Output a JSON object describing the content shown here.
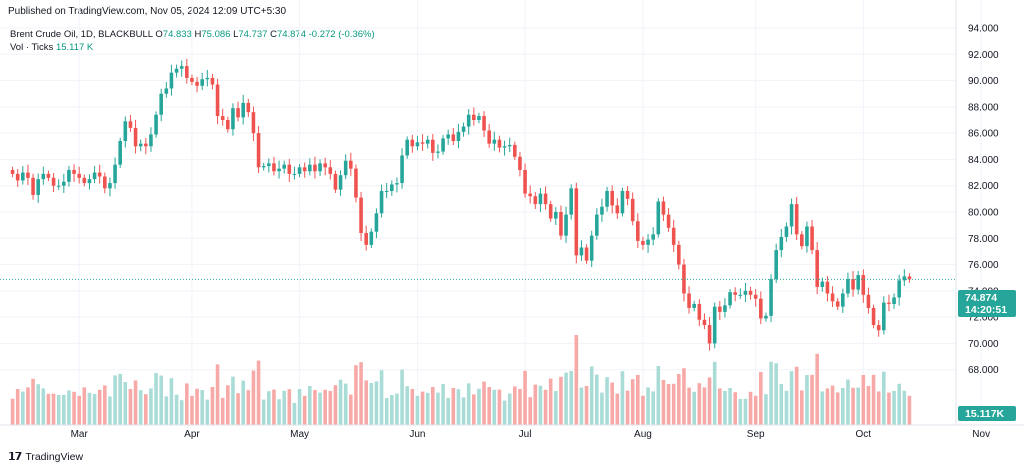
{
  "header": {
    "published": "Published on TradingView.com, Nov 05, 2024 12:09 UTC+5:30"
  },
  "legend": {
    "symbol": "Brent Crude Oil, 1D, BLACKBULL",
    "o_label": "O",
    "o_value": "74.833",
    "h_label": "H",
    "h_value": "75.086",
    "l_label": "L",
    "l_value": "74.737",
    "c_label": "C",
    "c_value": "74.874",
    "change": "-0.272 (-0.36%)",
    "vol_label": "Vol · Ticks",
    "vol_value": "15.117 K"
  },
  "price_tag": {
    "price": "74.874",
    "countdown": "14:20:51"
  },
  "volume_tag": {
    "value": "15.117K"
  },
  "footer": {
    "brand": "TradingView"
  },
  "colors": {
    "up": "#26a69a",
    "down": "#ef5350",
    "up_vol": "#a9dcd6",
    "down_vol": "#f7a9a7",
    "price_line": "#26a69a",
    "axis_text": "#131722",
    "grid": "#f0f3fa"
  },
  "chart_data": {
    "type": "candlestick",
    "symbol": "Brent Crude Oil",
    "interval": "1D",
    "y_axis": {
      "min": 66,
      "max": 94,
      "ticks": [
        "94.000",
        "92.000",
        "90.000",
        "88.000",
        "86.000",
        "84.000",
        "82.000",
        "80.000",
        "78.000",
        "76.000",
        "74.000",
        "72.000",
        "70.000",
        "68.000"
      ]
    },
    "x_axis": {
      "ticks": [
        "Mar",
        "Apr",
        "May",
        "Jun",
        "Jul",
        "Aug",
        "Sep",
        "Oct",
        "Nov"
      ]
    },
    "last_price": 74.874,
    "closes": [
      82.9,
      82.4,
      83.0,
      82.6,
      81.3,
      82.5,
      82.9,
      82.6,
      82.0,
      82.0,
      82.3,
      83.2,
      82.9,
      82.6,
      82.2,
      82.5,
      83.0,
      82.7,
      81.8,
      82.2,
      83.6,
      85.4,
      86.9,
      86.4,
      85.0,
      85.2,
      85.0,
      85.9,
      87.4,
      89.0,
      89.4,
      90.6,
      90.9,
      91.1,
      90.2,
      89.9,
      89.6,
      90.1,
      90.2,
      89.7,
      87.3,
      87.0,
      86.3,
      87.9,
      87.2,
      88.3,
      87.6,
      86.0,
      83.4,
      83.5,
      83.7,
      83.1,
      83.3,
      83.6,
      82.9,
      82.9,
      83.4,
      83.1,
      83.6,
      83.1,
      83.7,
      83.4,
      82.9,
      81.7,
      82.8,
      83.9,
      83.3,
      81.1,
      78.4,
      77.5,
      78.5,
      79.9,
      81.6,
      81.6,
      82.1,
      82.2,
      84.3,
      85.5,
      85.0,
      85.3,
      85.2,
      85.5,
      84.5,
      84.6,
      85.6,
      85.9,
      85.4,
      86.1,
      86.5,
      87.4,
      87.0,
      87.3,
      86.2,
      85.2,
      85.5,
      84.9,
      85.0,
      85.1,
      84.2,
      83.2,
      81.4,
      81.2,
      80.6,
      81.4,
      80.6,
      79.5,
      80.0,
      78.2,
      79.8,
      81.8,
      76.7,
      77.3,
      76.3,
      78.2,
      79.8,
      80.4,
      81.6,
      80.5,
      79.9,
      81.6,
      81.0,
      79.3,
      77.8,
      77.5,
      77.9,
      78.3,
      80.8,
      79.8,
      78.8,
      77.5,
      76.0,
      73.8,
      72.7,
      73.0,
      71.8,
      71.4,
      70.0,
      72.8,
      72.4,
      72.9,
      73.9,
      73.7,
      73.7,
      74.0,
      73.7,
      73.4,
      71.9,
      72.1,
      74.9,
      77.1,
      78.1,
      78.9,
      80.6,
      78.3,
      77.4,
      78.9,
      77.1,
      74.3,
      74.7,
      73.8,
      73.2,
      72.8,
      73.8,
      74.9,
      74.1,
      75.2,
      73.7,
      72.7,
      71.4,
      71.0,
      73.1,
      73.0,
      73.5,
      74.8,
      75.1,
      74.87
    ],
    "volume": "15.117K"
  }
}
